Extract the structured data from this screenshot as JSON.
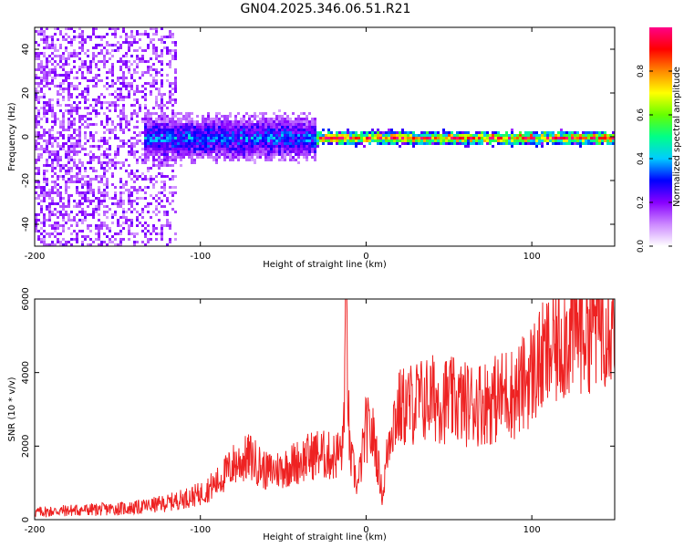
{
  "title": "GN04.2025.346.06.51.R21",
  "chart_data": [
    {
      "type": "heatmap",
      "xlabel": "Height of straight line (km)",
      "ylabel": "Frequency (Hz)",
      "xlim": [
        -200,
        150
      ],
      "ylim": [
        -50,
        50
      ],
      "xticks": [
        -200,
        -100,
        0,
        100
      ],
      "xtick_labels": [
        "-200",
        "-100",
        "0",
        "100"
      ],
      "yticks": [
        -40,
        -20,
        0,
        20,
        40
      ],
      "ytick_labels": [
        "-40",
        "-20",
        "0",
        "20",
        "40"
      ],
      "colorbar": {
        "label": "Normalized spectral amplitude",
        "range": [
          0,
          1
        ],
        "ticks": [
          0.0,
          0.2,
          0.4,
          0.6,
          0.8
        ],
        "tick_labels": [
          "0.0",
          "0.2",
          "0.4",
          "0.6",
          "0.8"
        ],
        "colormap": [
          "#ffffff",
          "#cc88ff",
          "#8800ff",
          "#0000ff",
          "#00ccff",
          "#00ff88",
          "#66ff00",
          "#ffff00",
          "#ff8800",
          "#ff0000",
          "#ff0088"
        ]
      },
      "features": [
        {
          "x_range": [
            -200,
            -115
          ],
          "freq_range": [
            -50,
            50
          ],
          "level": 0.15,
          "pattern": "scattered noise"
        },
        {
          "x_range": [
            -135,
            -30
          ],
          "freq_center": 0,
          "freq_halfwidth": 10,
          "level": 0.3
        },
        {
          "x_range": [
            -30,
            150
          ],
          "freq_center": 0,
          "freq_halfwidth": 3,
          "level": 0.75
        }
      ]
    },
    {
      "type": "line",
      "xlabel": "Height of straight line (km)",
      "ylabel": "SNR (10 * v/v)",
      "xlim": [
        -200,
        150
      ],
      "ylim": [
        0,
        6000
      ],
      "xticks": [
        -200,
        -100,
        0,
        100
      ],
      "xtick_labels": [
        "-200",
        "-100",
        "0",
        "100"
      ],
      "yticks": [
        0,
        2000,
        4000,
        6000
      ],
      "ytick_labels": [
        "0",
        "2000",
        "4000",
        "6000"
      ],
      "color": "#ee2222",
      "series": [
        {
          "x": [
            -200,
            -180,
            -160,
            -140,
            -120,
            -100,
            -90,
            -80,
            -70,
            -60,
            -50,
            -40,
            -30,
            -20,
            -14,
            -12,
            -10,
            -5,
            0,
            5,
            10,
            12,
            15,
            20,
            30,
            40,
            50,
            60,
            70,
            80,
            85,
            90,
            100,
            110,
            120,
            130,
            140,
            150
          ],
          "y": [
            200,
            250,
            280,
            320,
            450,
            700,
            1000,
            1500,
            1700,
            1300,
            1400,
            1600,
            1800,
            1700,
            1900,
            5900,
            1800,
            900,
            2500,
            2200,
            600,
            1500,
            2600,
            3000,
            3200,
            3300,
            3250,
            3150,
            3200,
            3300,
            3500,
            3400,
            4000,
            4500,
            5000,
            5300,
            5500,
            5700
          ]
        }
      ]
    }
  ]
}
